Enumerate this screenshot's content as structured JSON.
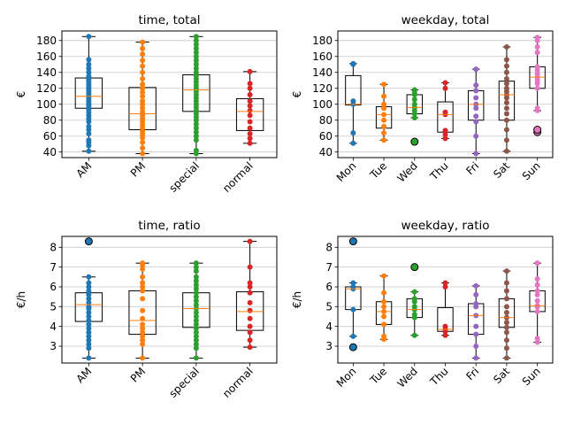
{
  "chart_data": [
    {
      "type": "box",
      "title": "time, total",
      "ylabel": "€",
      "ylim": [
        33,
        192
      ],
      "yticks": [
        40,
        60,
        80,
        100,
        120,
        140,
        160,
        180
      ],
      "grid": "y",
      "categories": [
        "AM",
        "PM",
        "special",
        "normal"
      ],
      "colors": [
        "#1f77b4",
        "#ff7f0e",
        "#2ca02c",
        "#d62728"
      ],
      "boxes": [
        {
          "min": 41,
          "q1": 95,
          "median": 110,
          "q3": 133,
          "max": 185,
          "fliers": []
        },
        {
          "min": 38,
          "q1": 68,
          "median": 88,
          "q3": 121,
          "max": 178,
          "fliers": []
        },
        {
          "min": 38,
          "q1": 91,
          "median": 118,
          "q3": 137,
          "max": 185,
          "fliers": []
        },
        {
          "min": 51,
          "q1": 67,
          "median": 91,
          "q3": 107,
          "max": 141,
          "fliers": []
        }
      ],
      "points": [
        [
          41,
          48,
          52,
          55,
          63,
          68,
          72,
          78,
          82,
          86,
          90,
          94,
          96,
          99,
          101,
          104,
          107,
          110,
          113,
          116,
          119,
          122,
          125,
          128,
          131,
          135,
          140,
          145,
          150,
          156,
          185
        ],
        [
          38,
          45,
          52,
          58,
          62,
          66,
          70,
          74,
          78,
          82,
          86,
          90,
          95,
          100,
          104,
          110,
          115,
          120,
          125,
          132,
          140,
          148,
          155,
          163,
          170,
          178
        ],
        [
          38,
          42,
          55,
          60,
          65,
          70,
          75,
          80,
          84,
          88,
          92,
          96,
          100,
          104,
          108,
          112,
          116,
          120,
          124,
          128,
          132,
          136,
          140,
          145,
          150,
          155,
          160,
          165,
          170,
          175,
          180,
          185
        ],
        [
          51,
          57,
          63,
          70,
          78,
          86,
          92,
          98,
          104,
          112,
          120,
          126,
          141
        ]
      ]
    },
    {
      "type": "box",
      "title": "weekday, total",
      "ylabel": "€",
      "ylim": [
        33,
        192
      ],
      "yticks": [
        40,
        60,
        80,
        100,
        120,
        140,
        160,
        180
      ],
      "grid": "y",
      "categories": [
        "Mon",
        "Tue",
        "Wed",
        "Thu",
        "Fri",
        "Sat",
        "Sun"
      ],
      "colors": [
        "#1f77b4",
        "#ff7f0e",
        "#2ca02c",
        "#d62728",
        "#9467bd",
        "#8c564b",
        "#e377c2"
      ],
      "boxes": [
        {
          "min": 51,
          "q1": 99,
          "median": 100,
          "q3": 136,
          "max": 151,
          "fliers": []
        },
        {
          "min": 55,
          "q1": 70,
          "median": 87,
          "q3": 97,
          "max": 125,
          "fliers": []
        },
        {
          "min": 83,
          "q1": 88,
          "median": 96,
          "q3": 112,
          "max": 118,
          "fliers": [
            53
          ]
        },
        {
          "min": 57,
          "q1": 65,
          "median": 87,
          "q3": 103,
          "max": 127,
          "fliers": []
        },
        {
          "min": 38,
          "q1": 80,
          "median": 100,
          "q3": 117,
          "max": 144,
          "fliers": []
        },
        {
          "min": 41,
          "q1": 80,
          "median": 112,
          "q3": 129,
          "max": 172,
          "fliers": []
        },
        {
          "min": 92,
          "q1": 120,
          "median": 134,
          "q3": 147,
          "max": 184,
          "fliers": [
            65,
            68
          ]
        }
      ],
      "points": [
        [
          51,
          64,
          100,
          104,
          150,
          151
        ],
        [
          55,
          64,
          72,
          80,
          87,
          95,
          100,
          110,
          125
        ],
        [
          83,
          88,
          92,
          96,
          100,
          106,
          112,
          115,
          118
        ],
        [
          57,
          62,
          67,
          87,
          90,
          120,
          127
        ],
        [
          38,
          60,
          78,
          85,
          95,
          100,
          108,
          117,
          124,
          144
        ],
        [
          41,
          55,
          68,
          80,
          88,
          95,
          102,
          108,
          112,
          116,
          120,
          126,
          132,
          140,
          148,
          156,
          172
        ],
        [
          92,
          95,
          120,
          126,
          130,
          134,
          138,
          143,
          147,
          165,
          172,
          180,
          184
        ]
      ]
    },
    {
      "type": "box",
      "title": "time, ratio",
      "ylabel": "€/h",
      "ylim": [
        2.15,
        8.55
      ],
      "yticks": [
        3,
        4,
        5,
        6,
        7,
        8
      ],
      "grid": "y",
      "categories": [
        "AM",
        "PM",
        "special",
        "normal"
      ],
      "colors": [
        "#1f77b4",
        "#ff7f0e",
        "#2ca02c",
        "#d62728"
      ],
      "boxes": [
        {
          "min": 2.4,
          "q1": 4.25,
          "median": 5.1,
          "q3": 5.7,
          "max": 6.5,
          "fliers": [
            8.3
          ]
        },
        {
          "min": 2.4,
          "q1": 3.6,
          "median": 4.3,
          "q3": 5.8,
          "max": 7.2,
          "fliers": []
        },
        {
          "min": 2.4,
          "q1": 3.95,
          "median": 4.9,
          "q3": 5.7,
          "max": 7.2,
          "fliers": []
        },
        {
          "min": 2.95,
          "q1": 3.8,
          "median": 4.75,
          "q3": 5.75,
          "max": 8.3,
          "fliers": []
        }
      ],
      "points": [
        [
          2.4,
          2.9,
          3.1,
          3.3,
          3.5,
          3.7,
          3.9,
          4.1,
          4.3,
          4.5,
          4.7,
          4.9,
          5.0,
          5.2,
          5.4,
          5.6,
          5.8,
          6.0,
          6.2,
          6.5
        ],
        [
          2.4,
          3.1,
          3.3,
          3.5,
          3.7,
          3.9,
          4.1,
          4.4,
          4.8,
          5.4,
          5.8,
          6.0,
          6.2,
          6.5,
          6.9,
          7.1,
          7.2
        ],
        [
          2.4,
          2.9,
          3.1,
          3.3,
          3.5,
          3.7,
          3.9,
          4.1,
          4.3,
          4.5,
          4.7,
          4.9,
          5.1,
          5.3,
          5.5,
          5.7,
          5.9,
          6.1,
          6.3,
          6.5,
          6.8,
          7.0,
          7.2
        ],
        [
          2.95,
          3.3,
          3.7,
          4.0,
          4.4,
          4.8,
          5.2,
          5.7,
          6.0,
          6.2,
          7.0,
          8.3
        ]
      ]
    },
    {
      "type": "box",
      "title": "weekday, ratio",
      "ylabel": "€/h",
      "ylim": [
        2.15,
        8.55
      ],
      "yticks": [
        3,
        4,
        5,
        6,
        7,
        8
      ],
      "grid": "y",
      "categories": [
        "Mon",
        "Tue",
        "Wed",
        "Thu",
        "Fri",
        "Sat",
        "Sun"
      ],
      "colors": [
        "#1f77b4",
        "#ff7f0e",
        "#2ca02c",
        "#d62728",
        "#9467bd",
        "#8c564b",
        "#e377c2"
      ],
      "boxes": [
        {
          "min": 3.5,
          "q1": 4.85,
          "median": 5.9,
          "q3": 6.0,
          "max": 6.2,
          "fliers": [
            8.3,
            2.95
          ]
        },
        {
          "min": 3.35,
          "q1": 4.1,
          "median": 4.75,
          "q3": 5.25,
          "max": 6.55,
          "fliers": []
        },
        {
          "min": 3.55,
          "q1": 4.45,
          "median": 4.85,
          "q3": 5.4,
          "max": 5.75,
          "fliers": [
            7.0
          ]
        },
        {
          "min": 3.55,
          "q1": 3.75,
          "median": 3.85,
          "q3": 4.95,
          "max": 6.2,
          "fliers": []
        },
        {
          "min": 2.4,
          "q1": 3.6,
          "median": 4.55,
          "q3": 5.15,
          "max": 6.05,
          "fliers": []
        },
        {
          "min": 2.4,
          "q1": 3.95,
          "median": 4.45,
          "q3": 5.4,
          "max": 6.8,
          "fliers": []
        },
        {
          "min": 3.2,
          "q1": 4.75,
          "median": 5.05,
          "q3": 5.8,
          "max": 7.2,
          "fliers": []
        }
      ],
      "points": [
        [
          3.5,
          4.85,
          5.9,
          6.0,
          6.2
        ],
        [
          3.35,
          3.5,
          4.1,
          4.5,
          4.75,
          5.0,
          5.25,
          5.7,
          6.55
        ],
        [
          3.55,
          4.45,
          4.6,
          4.85,
          5.0,
          5.25,
          5.4,
          5.75
        ],
        [
          3.55,
          3.75,
          3.85,
          4.0,
          6.0,
          6.2
        ],
        [
          2.4,
          3.0,
          3.6,
          4.0,
          4.55,
          5.0,
          5.15,
          5.6,
          6.05
        ],
        [
          2.4,
          2.9,
          3.3,
          3.7,
          3.95,
          4.2,
          4.45,
          4.7,
          5.0,
          5.4,
          5.8,
          6.2,
          6.8
        ],
        [
          3.2,
          3.4,
          4.75,
          5.0,
          5.05,
          5.3,
          5.6,
          5.8,
          6.1,
          6.4,
          7.2
        ]
      ]
    }
  ]
}
